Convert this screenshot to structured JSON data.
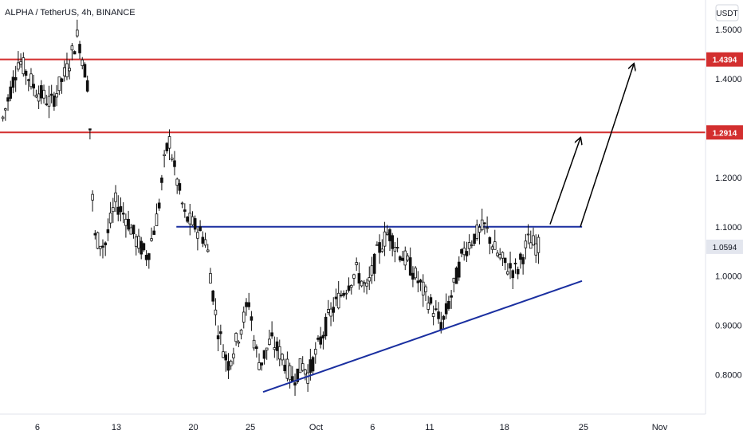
{
  "chart_data": {
    "type": "candlestick",
    "title": "ALPHA / TetherUS, 4h, BINANCE",
    "currency_button": "USDT",
    "x_ticks": [
      "6",
      "13",
      "20",
      "25",
      "Oct",
      "6",
      "11",
      "18",
      "25",
      "Nov"
    ],
    "y_ticks": [
      "1.5000",
      "1.4000",
      "1.3000",
      "1.2000",
      "1.1000",
      "1.0000",
      "0.9000",
      "0.8000"
    ],
    "y_tick_values": [
      1.5,
      1.4,
      1.3,
      1.2,
      1.1,
      1.0,
      0.9,
      0.8
    ],
    "ylim": [
      0.72,
      1.56
    ],
    "levels": [
      {
        "value": 1.4394,
        "label": "1.4394",
        "color": "#d32f2f"
      },
      {
        "value": 1.2914,
        "label": "1.2914",
        "color": "#d32f2f"
      }
    ],
    "resistance": {
      "value": 1.1,
      "color": "#1a2fa0"
    },
    "last_price": {
      "value": 1.0594,
      "label": "1.0594"
    },
    "price_path": [
      [
        0,
        1.32
      ],
      [
        3,
        1.44
      ],
      [
        6,
        1.38
      ],
      [
        9,
        1.35
      ],
      [
        12,
        1.42
      ],
      [
        14,
        1.49
      ],
      [
        16,
        1.38
      ],
      [
        17,
        1.08
      ],
      [
        19,
        1.06
      ],
      [
        21,
        1.15
      ],
      [
        23,
        1.12
      ],
      [
        25,
        1.07
      ],
      [
        27,
        1.04
      ],
      [
        29,
        1.13
      ],
      [
        30,
        1.22
      ],
      [
        31,
        1.28
      ],
      [
        32,
        1.22
      ],
      [
        34,
        1.12
      ],
      [
        36,
        1.1
      ],
      [
        38,
        1.07
      ],
      [
        40,
        0.9
      ],
      [
        42,
        0.82
      ],
      [
        44,
        0.88
      ],
      [
        46,
        0.95
      ],
      [
        47,
        0.86
      ],
      [
        48,
        0.82
      ],
      [
        50,
        0.87
      ],
      [
        52,
        0.84
      ],
      [
        54,
        0.79
      ],
      [
        56,
        0.82
      ],
      [
        57,
        0.8
      ],
      [
        59,
        0.86
      ],
      [
        61,
        0.92
      ],
      [
        63,
        0.96
      ],
      [
        66,
        1.01
      ],
      [
        68,
        0.97
      ],
      [
        70,
        1.05
      ],
      [
        72,
        1.09
      ],
      [
        74,
        1.05
      ],
      [
        76,
        1.02
      ],
      [
        78,
        0.98
      ],
      [
        80,
        0.94
      ],
      [
        82,
        0.9
      ],
      [
        84,
        0.97
      ],
      [
        86,
        1.05
      ],
      [
        88,
        1.08
      ],
      [
        90,
        1.1
      ],
      [
        92,
        1.05
      ],
      [
        94,
        1.02
      ],
      [
        96,
        1.01
      ],
      [
        98,
        1.07
      ],
      [
        100,
        1.06
      ]
    ],
    "annotations": [
      {
        "type": "trendline",
        "from": [
          0.0,
          0.765
        ],
        "to": [
          0.48,
          0.99
        ],
        "color": "#1a2fa0"
      },
      {
        "type": "arrow",
        "from": [
          0.36,
          1.105
        ],
        "to": [
          0.405,
          1.28
        ],
        "color": "#000000"
      },
      {
        "type": "arrow",
        "from": [
          0.405,
          1.1
        ],
        "to": [
          0.5,
          1.43
        ],
        "color": "#000000"
      }
    ]
  }
}
